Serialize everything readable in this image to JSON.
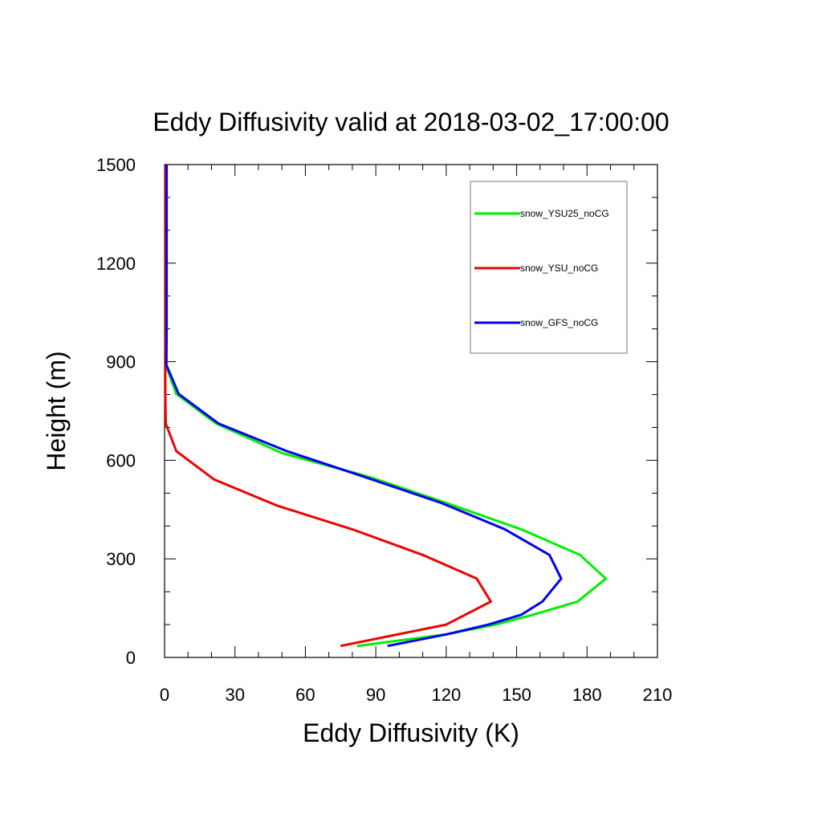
{
  "chart_data": {
    "type": "line",
    "title": "Eddy Diffusivity valid at 2018-03-02_17:00:00",
    "xlabel": "Eddy Diffusivity (K)",
    "ylabel": "Height (m)",
    "xlim": [
      0,
      210
    ],
    "ylim": [
      0,
      1500
    ],
    "xticks": [
      0,
      30,
      60,
      90,
      120,
      150,
      180,
      210
    ],
    "yticks": [
      0,
      300,
      600,
      900,
      1200,
      1500
    ],
    "x_minor_step": 10,
    "y_minor_step": 100,
    "grid": false,
    "legend_position": "top-right",
    "series": [
      {
        "name": "snow_YSU25_noCG",
        "color": "#00ee00",
        "points": [
          [
            82,
            35
          ],
          [
            120,
            70
          ],
          [
            141,
            100
          ],
          [
            157,
            130
          ],
          [
            176,
            170
          ],
          [
            188,
            240
          ],
          [
            177,
            312
          ],
          [
            152,
            390
          ],
          [
            120,
            470
          ],
          [
            87,
            550
          ],
          [
            50,
            622
          ],
          [
            22,
            712
          ],
          [
            5,
            802
          ],
          [
            0.5,
            890
          ],
          [
            0.5,
            900
          ],
          [
            0.6,
            1000
          ],
          [
            0.6,
            1100
          ],
          [
            0.6,
            1200
          ],
          [
            0.6,
            1300
          ],
          [
            0.6,
            1400
          ],
          [
            0.6,
            1500
          ]
        ]
      },
      {
        "name": "snow_YSU_noCG",
        "color": "#ee0000",
        "points": [
          [
            75,
            35
          ],
          [
            120,
            100
          ],
          [
            139,
            170
          ],
          [
            133,
            240
          ],
          [
            110,
            312
          ],
          [
            80,
            390
          ],
          [
            48,
            462
          ],
          [
            21,
            542
          ],
          [
            5,
            628
          ],
          [
            0.5,
            712
          ],
          [
            0.3,
            800
          ],
          [
            0.3,
            900
          ],
          [
            0.4,
            1000
          ],
          [
            0.4,
            1100
          ],
          [
            0.4,
            1200
          ],
          [
            0.4,
            1300
          ],
          [
            0.4,
            1400
          ],
          [
            0.4,
            1500
          ]
        ]
      },
      {
        "name": "snow_GFS_noCG",
        "color": "#0000ee",
        "points": [
          [
            95,
            35
          ],
          [
            120,
            70
          ],
          [
            138,
            100
          ],
          [
            152,
            130
          ],
          [
            161,
            170
          ],
          [
            169,
            240
          ],
          [
            164,
            312
          ],
          [
            145,
            390
          ],
          [
            118,
            470
          ],
          [
            85,
            550
          ],
          [
            52,
            628
          ],
          [
            23,
            712
          ],
          [
            6,
            802
          ],
          [
            0.8,
            890
          ],
          [
            0.8,
            900
          ],
          [
            0.9,
            1000
          ],
          [
            0.9,
            1100
          ],
          [
            0.9,
            1200
          ],
          [
            0.9,
            1300
          ],
          [
            0.9,
            1400
          ],
          [
            0.9,
            1500
          ]
        ]
      }
    ]
  }
}
